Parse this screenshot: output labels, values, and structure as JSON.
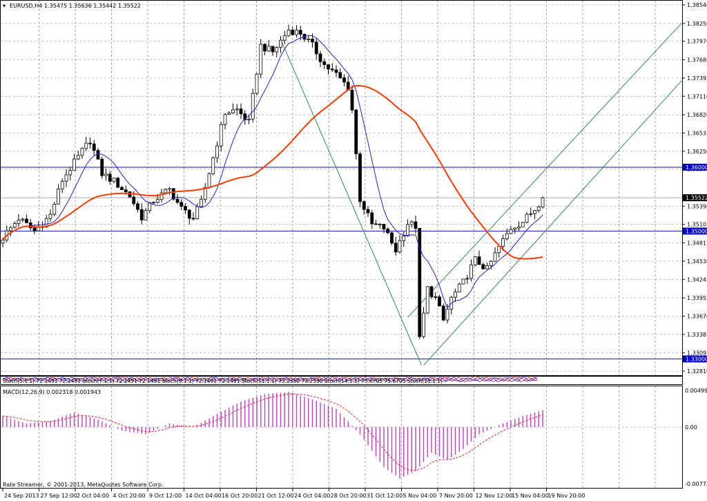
{
  "header": {
    "symbol": "EURUSD,H4",
    "ohlc": "1.35475 1.35636 1.35442 1.35522"
  },
  "stoch_strip": {
    "text": "Stoch(5.1.1) 72.1491 72.1491 Stoch(7.1.1) 72.1491 72.1491 Stoch(9.1.1) 72.1491 72.1491 Stoch(11.1.1) 73.2350 73.2350 Stoch(14.1.1) 75.6705 75.6705 Stoch(15.1.1)"
  },
  "macd_panel": {
    "label": "MACD(12,26,9) 0.002318 0.001943",
    "footer": "Rate Streamer, © 2001-2013, MetaQuotes Software Corp.",
    "ticks": [
      "0.004999",
      "0.00",
      "-0.007731"
    ]
  },
  "price_axis": {
    "ticks": [
      "1.38540",
      "1.38250",
      "1.37970",
      "1.37680",
      "1.37395",
      "1.37110",
      "1.36820",
      "1.36535",
      "1.36250",
      "1.35970",
      "1.35390",
      "1.35105",
      "1.34815",
      "1.34530",
      "1.34245",
      "1.33955",
      "1.33670",
      "1.33385",
      "1.33095",
      "1.32810"
    ],
    "levels": [
      {
        "label": "1.36000",
        "value": 1.36
      },
      {
        "label": "1.35000",
        "value": 1.35
      },
      {
        "label": "1.33000",
        "value": 1.33
      }
    ],
    "current": {
      "label": "1.35522",
      "value": 1.35522
    }
  },
  "time_axis": {
    "labels": [
      "24 Sep 2013",
      "27 Sep 12:00",
      "2 Oct 04:00",
      "4 Oct 20:00",
      "9 Oct 12:00",
      "14 Oct 04:00",
      "16 Oct 20:00",
      "21 Oct 12:00",
      "24 Oct 04:00",
      "28 Oct 20:00",
      "31 Oct 12:00",
      "5 Nov 04:00",
      "7 Nov 20:00",
      "12 Nov 12:00",
      "15 Nov 04:00",
      "19 Nov 20:00"
    ]
  },
  "colors": {
    "bull_candle": "#ffffff",
    "bear_candle": "#000000",
    "fast_ma": "#2020e0",
    "slow_ma": "#ff3a00",
    "channel": "#2e8b57",
    "level_line": "#1010d0",
    "macd_hist": "#c040c0",
    "macd_signal": "#e0202f",
    "tag_bg": "#0000cc",
    "current_tag_bg": "#000000"
  },
  "chart_data": {
    "type": "candlestick",
    "title": "EURUSD,H4",
    "ylim": [
      1.3281,
      1.3854
    ],
    "close_path": [
      [
        0,
        1.349
      ],
      [
        4,
        1.352
      ],
      [
        8,
        1.35
      ],
      [
        12,
        1.3525
      ],
      [
        15,
        1.358
      ],
      [
        20,
        1.3625
      ],
      [
        22,
        1.3642
      ],
      [
        25,
        1.359
      ],
      [
        28,
        1.3578
      ],
      [
        32,
        1.3555
      ],
      [
        35,
        1.3522
      ],
      [
        38,
        1.3548
      ],
      [
        42,
        1.3565
      ],
      [
        45,
        1.3535
      ],
      [
        48,
        1.352
      ],
      [
        50,
        1.3545
      ],
      [
        53,
        1.3615
      ],
      [
        56,
        1.3685
      ],
      [
        59,
        1.369
      ],
      [
        62,
        1.367
      ],
      [
        65,
        1.379
      ],
      [
        68,
        1.378
      ],
      [
        72,
        1.3815
      ],
      [
        75,
        1.381
      ],
      [
        78,
        1.379
      ],
      [
        81,
        1.376
      ],
      [
        84,
        1.3745
      ],
      [
        87,
        1.3725
      ],
      [
        88,
        1.369
      ],
      [
        90,
        1.355
      ],
      [
        93,
        1.351
      ],
      [
        96,
        1.3505
      ],
      [
        99,
        1.347
      ],
      [
        102,
        1.3512
      ],
      [
        104,
        1.3508
      ],
      [
        105,
        1.333
      ],
      [
        107,
        1.341
      ],
      [
        109,
        1.3395
      ],
      [
        111,
        1.336
      ],
      [
        113,
        1.3395
      ],
      [
        116,
        1.342
      ],
      [
        119,
        1.3455
      ],
      [
        122,
        1.344
      ],
      [
        125,
        1.3475
      ],
      [
        128,
        1.3505
      ],
      [
        131,
        1.3515
      ],
      [
        134,
        1.3535
      ],
      [
        136,
        1.3552
      ]
    ],
    "macd_histogram_path": [
      [
        0,
        0.0015
      ],
      [
        6,
        0.0005
      ],
      [
        12,
        0.0008
      ],
      [
        18,
        0.002
      ],
      [
        24,
        0.001
      ],
      [
        30,
        -0.0005
      ],
      [
        36,
        -0.001
      ],
      [
        42,
        0.0005
      ],
      [
        48,
        0.0
      ],
      [
        54,
        0.0018
      ],
      [
        60,
        0.0035
      ],
      [
        66,
        0.0045
      ],
      [
        72,
        0.0048
      ],
      [
        78,
        0.0038
      ],
      [
        84,
        0.0025
      ],
      [
        90,
        -0.001
      ],
      [
        96,
        -0.0055
      ],
      [
        100,
        -0.007
      ],
      [
        104,
        -0.006
      ],
      [
        108,
        -0.0035
      ],
      [
        112,
        -0.0045
      ],
      [
        116,
        -0.003
      ],
      [
        120,
        -0.001
      ],
      [
        126,
        0.0005
      ],
      [
        131,
        0.0015
      ],
      [
        136,
        0.0023
      ]
    ],
    "macd_range": [
      -0.007731,
      0.004999
    ]
  }
}
